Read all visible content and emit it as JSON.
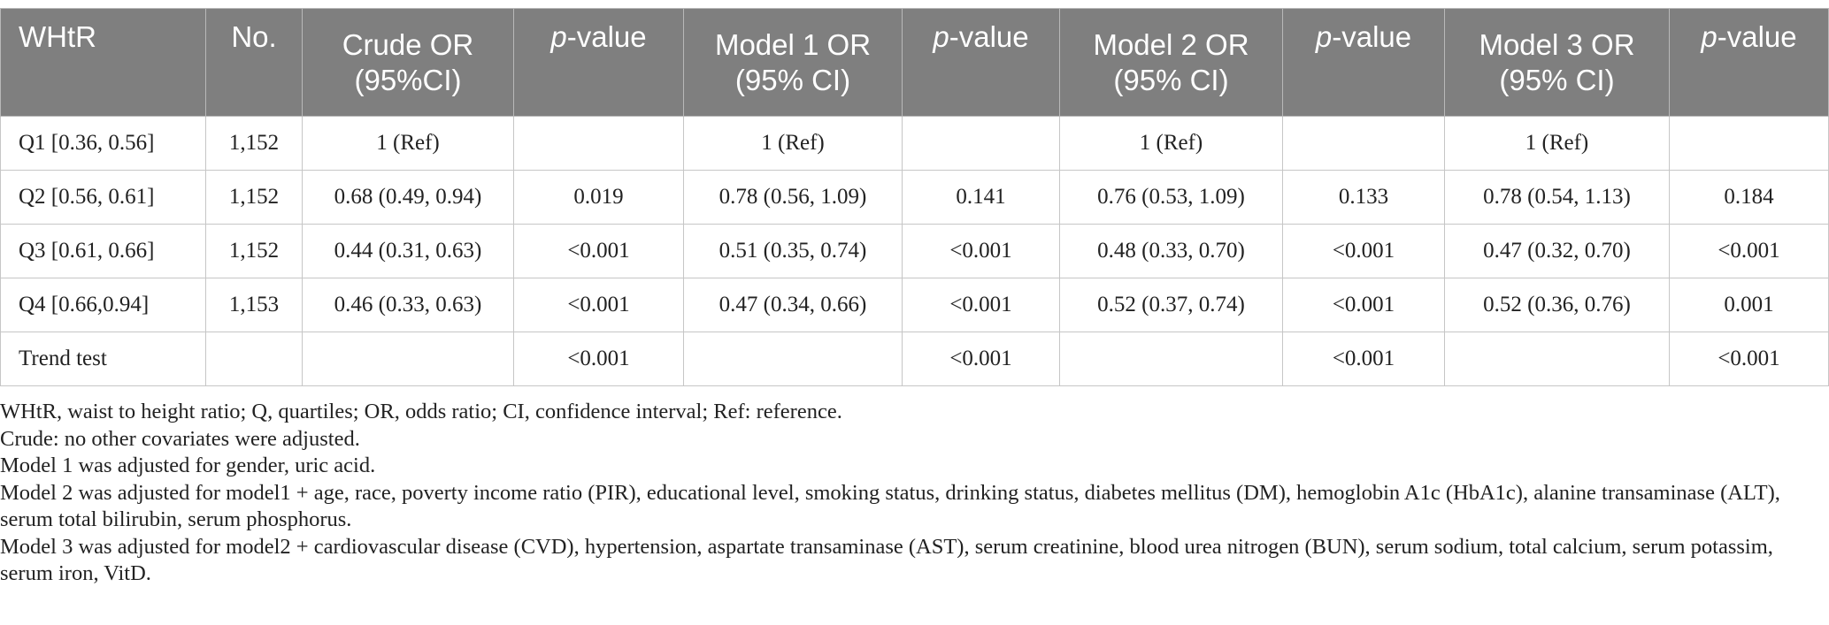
{
  "table": {
    "headers": [
      {
        "text": "WHtR"
      },
      {
        "text": "No."
      },
      {
        "line1": "Crude OR",
        "line2": "(95%CI)"
      },
      {
        "italic": "p",
        "rest": "-value"
      },
      {
        "line1": "Model 1 OR",
        "line2": "(95% CI)"
      },
      {
        "italic": "p",
        "rest": "-value"
      },
      {
        "line1": "Model 2 OR",
        "line2": "(95% CI)"
      },
      {
        "italic": "p",
        "rest": "-value"
      },
      {
        "line1": "Model 3 OR",
        "line2": "(95% CI)"
      },
      {
        "italic": "p",
        "rest": "-value"
      }
    ],
    "rows": [
      [
        "Q1 [0.36, 0.56]",
        "1,152",
        "1 (Ref)",
        "",
        "1 (Ref)",
        "",
        "1 (Ref)",
        "",
        "1 (Ref)",
        ""
      ],
      [
        "Q2 [0.56, 0.61]",
        "1,152",
        "0.68 (0.49, 0.94)",
        "0.019",
        "0.78 (0.56, 1.09)",
        "0.141",
        "0.76 (0.53, 1.09)",
        "0.133",
        "0.78 (0.54, 1.13)",
        "0.184"
      ],
      [
        "Q3 [0.61, 0.66]",
        "1,152",
        "0.44 (0.31, 0.63)",
        "<0.001",
        "0.51 (0.35, 0.74)",
        "<0.001",
        "0.48 (0.33, 0.70)",
        "<0.001",
        "0.47 (0.32, 0.70)",
        "<0.001"
      ],
      [
        "Q4 [0.66,0.94]",
        "1,153",
        "0.46 (0.33, 0.63)",
        "<0.001",
        "0.47 (0.34, 0.66)",
        "<0.001",
        "0.52 (0.37, 0.74)",
        "<0.001",
        "0.52 (0.36, 0.76)",
        "0.001"
      ],
      [
        "Trend test",
        "",
        "",
        "<0.001",
        "",
        "<0.001",
        "",
        "<0.001",
        "",
        "<0.001"
      ]
    ]
  },
  "notes": [
    "WHtR, waist to height ratio; Q, quartiles; OR, odds ratio; CI, confidence interval; Ref: reference.",
    "Crude: no other covariates were adjusted.",
    "Model 1 was adjusted for gender, uric acid.",
    "Model 2 was adjusted for model1 + age, race, poverty income ratio (PIR), educational level, smoking status, drinking status, diabetes mellitus (DM), hemoglobin A1c (HbA1c), alanine transaminase (ALT), serum total bilirubin, serum phosphorus.",
    "Model 3 was adjusted for model2 + cardiovascular disease (CVD), hypertension, aspartate transaminase (AST), serum creatinine, blood urea nitrogen (BUN), serum sodium, total calcium, serum potassim, serum iron, VitD."
  ],
  "colors": {
    "header_bg": "#7f7f7f",
    "header_text": "#ffffff",
    "body_text": "#222222",
    "grid": "#c6c6c6"
  }
}
